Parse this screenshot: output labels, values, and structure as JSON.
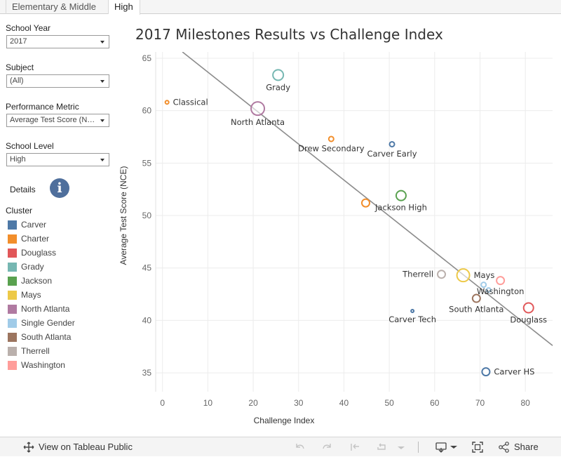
{
  "tabs": [
    {
      "label": "Elementary & Middle",
      "active": false
    },
    {
      "label": "High",
      "active": true
    }
  ],
  "filters": {
    "school_year": {
      "label": "School Year",
      "value": "2017"
    },
    "subject": {
      "label": "Subject",
      "value": "(All)"
    },
    "performance_metric": {
      "label": "Performance Metric",
      "value": "Average Test Score (NCE)"
    },
    "school_level": {
      "label": "School Level",
      "value": "High"
    }
  },
  "details": {
    "label": "Details",
    "icon": "info-icon"
  },
  "legend": {
    "title": "Cluster",
    "items": [
      {
        "label": "Carver",
        "color": "#4e79a7"
      },
      {
        "label": "Charter",
        "color": "#f28e2b"
      },
      {
        "label": "Douglass",
        "color": "#e15759"
      },
      {
        "label": "Grady",
        "color": "#76b7b2"
      },
      {
        "label": "Jackson",
        "color": "#59a14f"
      },
      {
        "label": "Mays",
        "color": "#edc948"
      },
      {
        "label": "North Atlanta",
        "color": "#b07aa1"
      },
      {
        "label": "Single Gender",
        "color": "#a0cbe8"
      },
      {
        "label": "South Atlanta",
        "color": "#9c755f"
      },
      {
        "label": "Therrell",
        "color": "#bab0ac"
      },
      {
        "label": "Washington",
        "color": "#ff9d9a"
      }
    ]
  },
  "chart_data": {
    "type": "scatter",
    "title": "2017 Milestones Results vs Challenge Index",
    "xlabel": "Challenge Index",
    "ylabel": "Average Test Score (NCE)",
    "xlim": [
      -1.5,
      86
    ],
    "ylim": [
      33.2,
      65.6
    ],
    "xticks": [
      0,
      10,
      20,
      30,
      40,
      50,
      60,
      70,
      80
    ],
    "yticks": [
      35,
      40,
      45,
      50,
      55,
      60,
      65
    ],
    "grid": true,
    "trend_line": {
      "x": [
        4.4,
        86
      ],
      "y": [
        65.6,
        37.6
      ]
    },
    "points": [
      {
        "label": "Classical",
        "cluster": "Charter",
        "x": 1.0,
        "y": 60.8,
        "size": 2.5,
        "label_pos": "right"
      },
      {
        "label": "Grady",
        "cluster": "Grady",
        "x": 25.5,
        "y": 63.4,
        "size": 7.5,
        "label_pos": "below"
      },
      {
        "label": "North Atlanta",
        "cluster": "North Atlanta",
        "x": 21.0,
        "y": 60.2,
        "size": 9.5,
        "label_pos": "below"
      },
      {
        "label": "Drew Secondary",
        "cluster": "Charter",
        "x": 37.2,
        "y": 57.3,
        "size": 3.5,
        "label_pos": "below"
      },
      {
        "label": "Carver Early",
        "cluster": "Carver",
        "x": 50.6,
        "y": 56.8,
        "size": 3.5,
        "label_pos": "below"
      },
      {
        "label": "",
        "cluster": "Charter",
        "x": 44.8,
        "y": 51.2,
        "size": 5.5,
        "label_pos": "none"
      },
      {
        "label": "Jackson High",
        "cluster": "Jackson",
        "x": 52.6,
        "y": 51.9,
        "size": 7,
        "label_pos": "below"
      },
      {
        "label": "Therrell",
        "cluster": "Therrell",
        "x": 61.5,
        "y": 44.4,
        "size": 5.5,
        "label_pos": "left"
      },
      {
        "label": "Mays",
        "cluster": "Mays",
        "x": 66.3,
        "y": 44.3,
        "size": 9,
        "label_pos": "right"
      },
      {
        "label": "",
        "cluster": "Single Gender",
        "x": 70.8,
        "y": 43.4,
        "size": 3.5,
        "label_pos": "none"
      },
      {
        "label": "",
        "cluster": "Single Gender",
        "x": 71.9,
        "y": 42.9,
        "size": 3,
        "label_pos": "none"
      },
      {
        "label": "Washington",
        "cluster": "Washington",
        "x": 74.5,
        "y": 43.8,
        "size": 5.5,
        "label_pos": "below"
      },
      {
        "label": "South Atlanta",
        "cluster": "South Atlanta",
        "x": 69.2,
        "y": 42.1,
        "size": 5.5,
        "label_pos": "below"
      },
      {
        "label": "Carver Tech",
        "cluster": "Carver",
        "x": 55.1,
        "y": 40.9,
        "size": 2,
        "label_pos": "below"
      },
      {
        "label": "Douglass",
        "cluster": "Douglass",
        "x": 80.7,
        "y": 41.2,
        "size": 7,
        "label_pos": "below"
      },
      {
        "label": "Carver HS",
        "cluster": "Carver",
        "x": 71.3,
        "y": 35.1,
        "size": 5.5,
        "label_pos": "right"
      }
    ]
  },
  "footer": {
    "view_label": "View on Tableau Public",
    "share_label": "Share"
  }
}
